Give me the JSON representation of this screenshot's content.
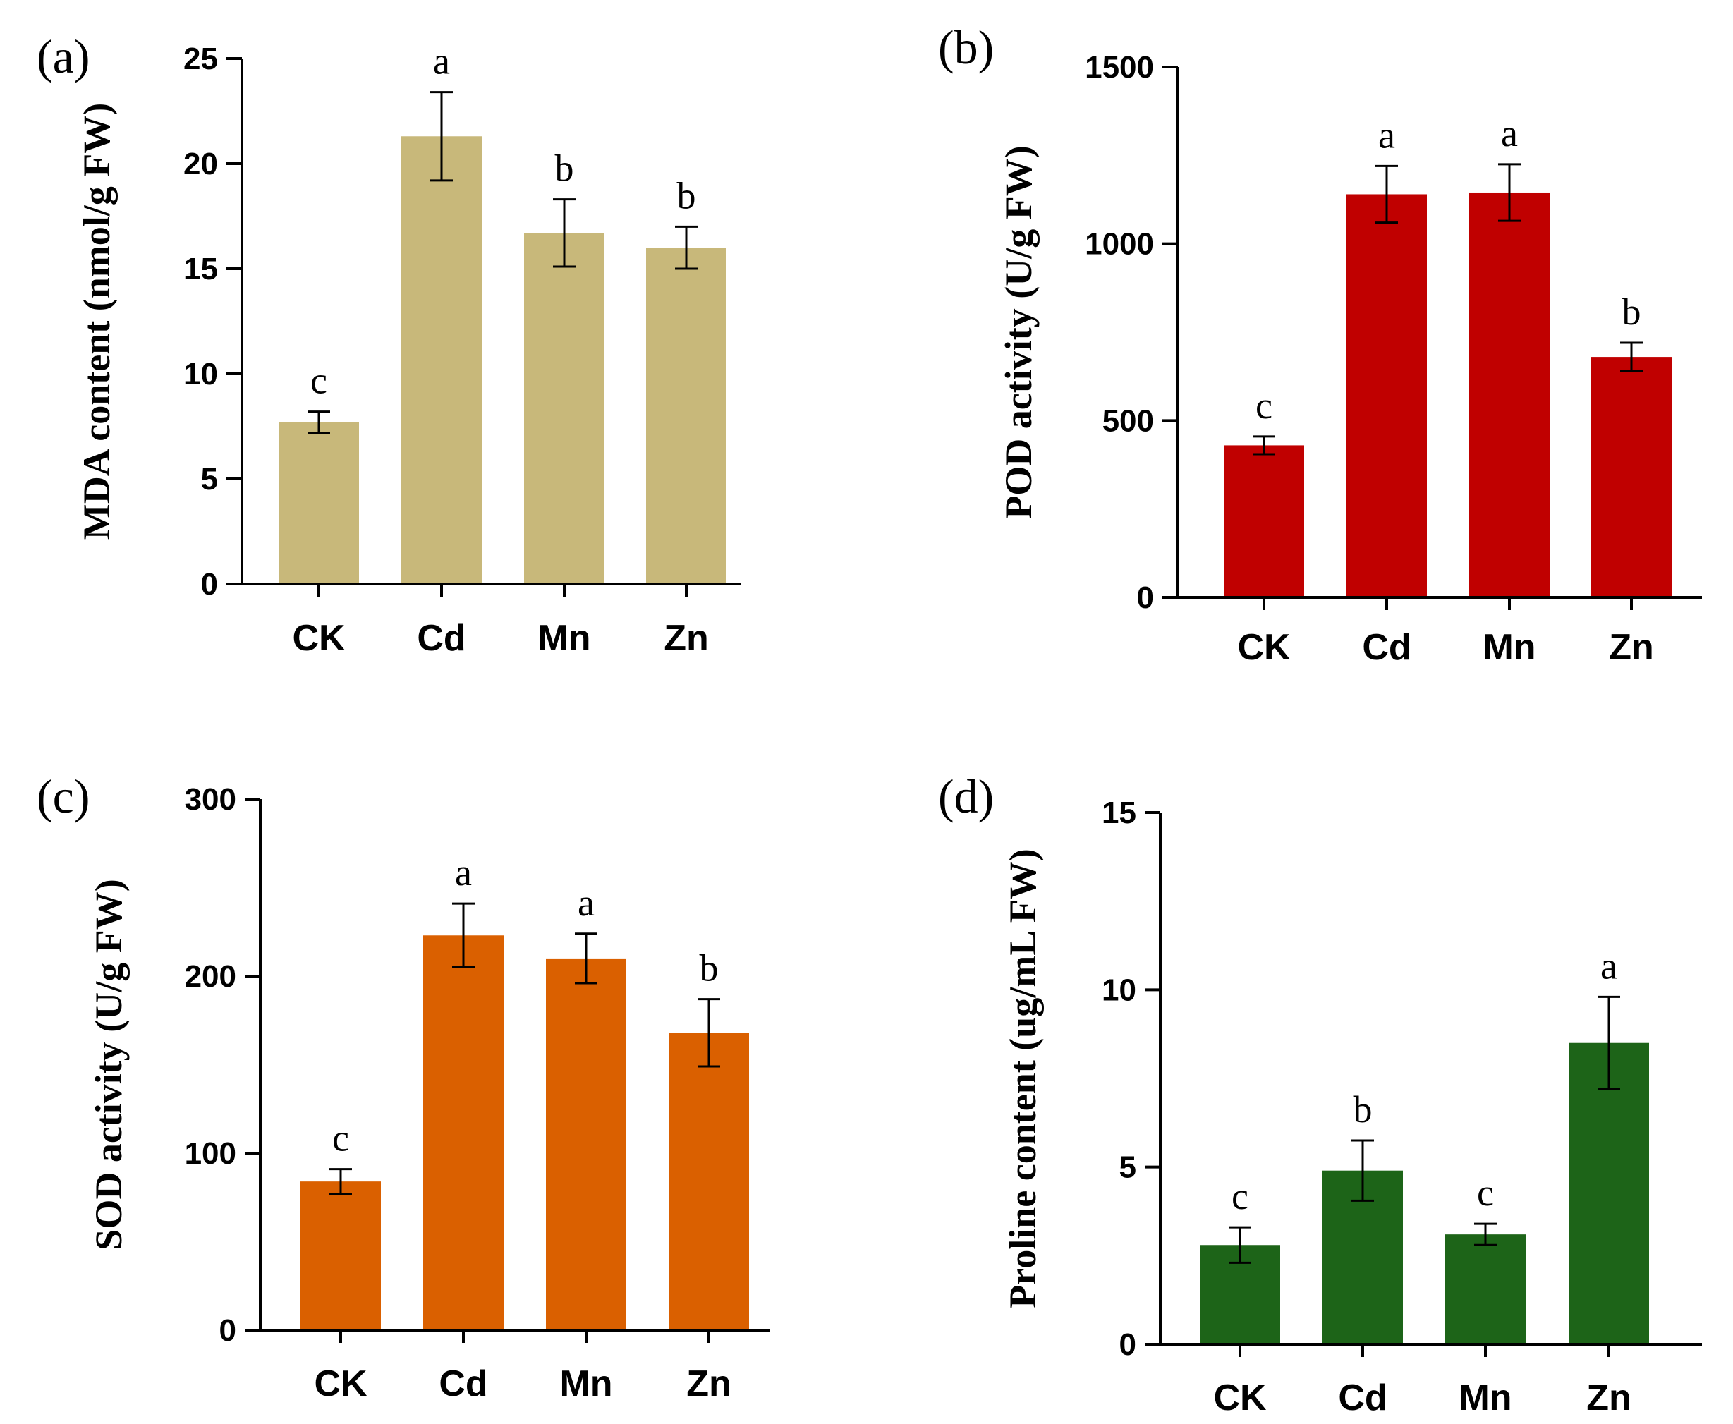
{
  "chart_data": [
    {
      "panel": "(a)",
      "type": "bar",
      "categories": [
        "CK",
        "Cd",
        "Mn",
        "Zn"
      ],
      "values": [
        7.7,
        21.3,
        16.7,
        16.0
      ],
      "errors": [
        0.5,
        2.1,
        1.6,
        1.0
      ],
      "significance": [
        "c",
        "a",
        "b",
        "b"
      ],
      "ylabel": "MDA content (nmol/g FW)",
      "ylim": [
        0,
        25
      ],
      "yticks": [
        0,
        5,
        10,
        15,
        20,
        25
      ],
      "color": "#C8B87A"
    },
    {
      "panel": "(b)",
      "type": "bar",
      "categories": [
        "CK",
        "Cd",
        "Mn",
        "Zn"
      ],
      "values": [
        430,
        1140,
        1145,
        680
      ],
      "errors": [
        25,
        80,
        80,
        40
      ],
      "significance": [
        "c",
        "a",
        "a",
        "b"
      ],
      "ylabel": "POD activity (U/g FW)",
      "ylim": [
        0,
        1500
      ],
      "yticks": [
        0,
        500,
        1000,
        1500
      ],
      "color": "#C00000"
    },
    {
      "panel": "(c)",
      "type": "bar",
      "categories": [
        "CK",
        "Cd",
        "Mn",
        "Zn"
      ],
      "values": [
        84,
        223,
        210,
        168
      ],
      "errors": [
        7,
        18,
        14,
        19
      ],
      "significance": [
        "c",
        "a",
        "a",
        "b"
      ],
      "ylabel": "SOD activity (U/g FW)",
      "ylim": [
        0,
        300
      ],
      "yticks": [
        0,
        100,
        200,
        300
      ],
      "color": "#DA6000"
    },
    {
      "panel": "(d)",
      "type": "bar",
      "categories": [
        "CK",
        "Cd",
        "Mn",
        "Zn"
      ],
      "values": [
        2.8,
        4.9,
        3.1,
        8.5
      ],
      "errors": [
        0.5,
        0.85,
        0.3,
        1.3
      ],
      "significance": [
        "c",
        "b",
        "c",
        "a"
      ],
      "ylabel": "Proline content (ug/mL FW)",
      "ylim": [
        0,
        15
      ],
      "yticks": [
        0,
        5,
        10,
        15
      ],
      "color": "#1D6418"
    }
  ]
}
